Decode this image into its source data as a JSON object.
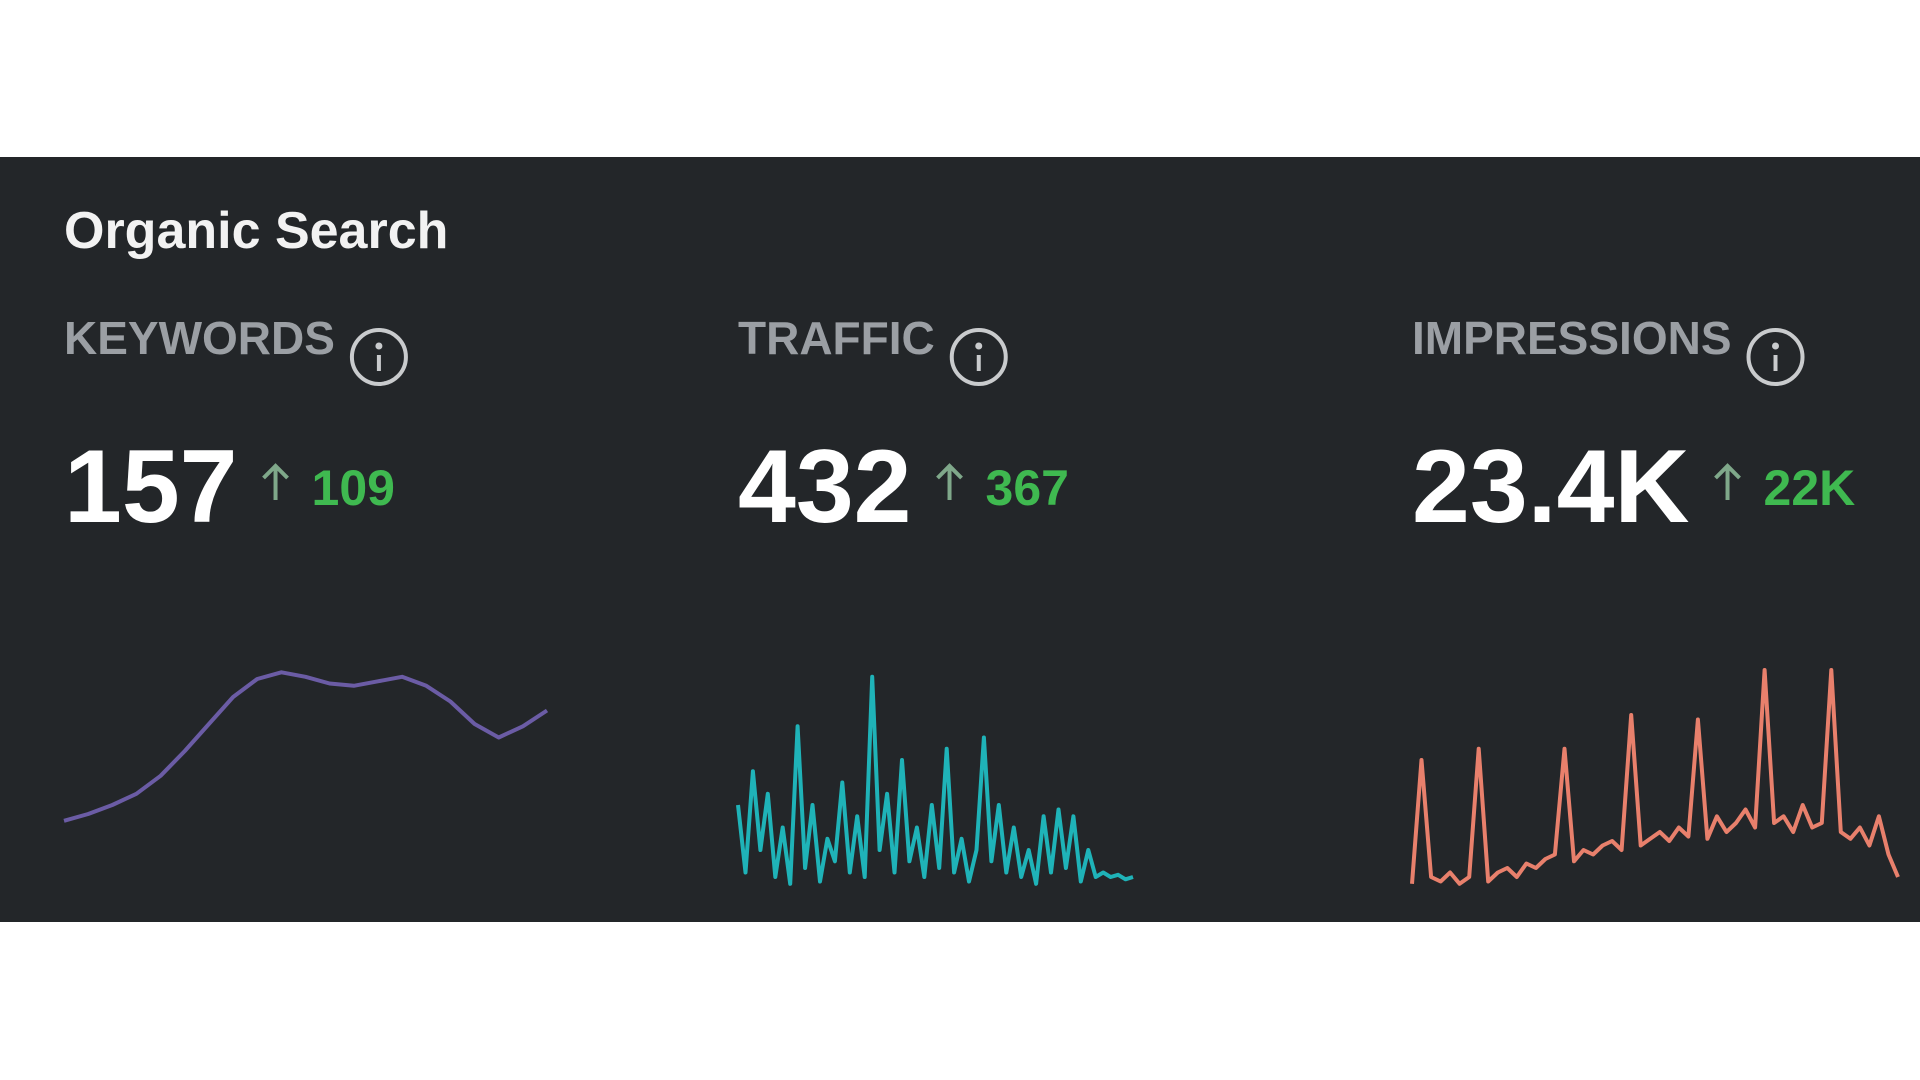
{
  "header": {
    "title": "Organic Search"
  },
  "metrics": [
    {
      "label": "KEYWORDS",
      "value": "157",
      "change": "109",
      "sparkline": {
        "color": "#6b5ca5",
        "values": [
          33,
          36,
          40,
          45,
          53,
          64,
          76,
          88,
          96,
          99,
          97,
          94,
          93,
          95,
          97,
          93,
          86,
          76,
          70,
          75,
          82
        ]
      }
    },
    {
      "label": "TRAFFIC",
      "value": "432",
      "change": "367",
      "sparkline": {
        "color": "#1fb3b8",
        "values": [
          40,
          10,
          55,
          20,
          45,
          8,
          30,
          5,
          75,
          12,
          40,
          6,
          25,
          15,
          50,
          10,
          35,
          8,
          97,
          20,
          45,
          10,
          60,
          15,
          30,
          8,
          40,
          12,
          65,
          10,
          25,
          6,
          20,
          70,
          15,
          40,
          10,
          30,
          8,
          20,
          5,
          35,
          10,
          38,
          12,
          35,
          6,
          20,
          8,
          10,
          8,
          9,
          7,
          8
        ]
      }
    },
    {
      "label": "IMPRESSIONS",
      "value": "23.4K",
      "change": "22K",
      "sparkline": {
        "color": "#e8806c",
        "values": [
          5,
          60,
          8,
          6,
          10,
          5,
          8,
          65,
          6,
          10,
          12,
          8,
          14,
          12,
          16,
          18,
          65,
          15,
          20,
          18,
          22,
          24,
          20,
          80,
          22,
          25,
          28,
          24,
          30,
          26,
          78,
          25,
          35,
          28,
          32,
          38,
          30,
          100,
          32,
          35,
          28,
          40,
          30,
          32,
          100,
          28,
          25,
          30,
          22,
          35,
          18,
          8
        ]
      }
    }
  ]
}
